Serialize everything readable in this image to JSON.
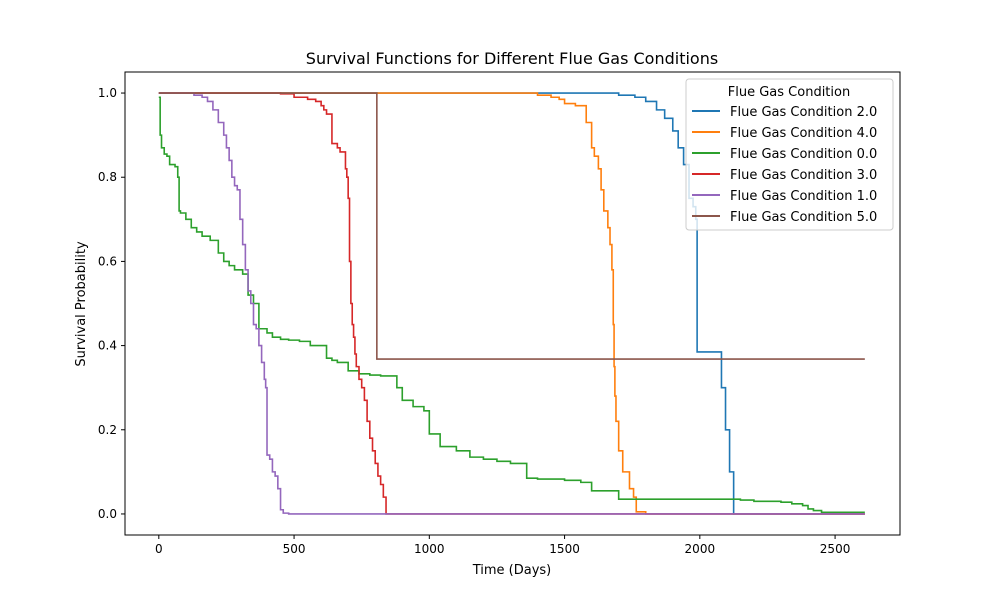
{
  "chart_data": {
    "type": "line",
    "title": "Survival Functions for Different Flue Gas Conditions",
    "xlabel": "Time (Days)",
    "ylabel": "Survival Probability",
    "xlim": [
      -125,
      2740
    ],
    "ylim": [
      -0.05,
      1.05
    ],
    "xticks": [
      0,
      500,
      1000,
      1500,
      2000,
      2500
    ],
    "yticks": [
      0.0,
      0.2,
      0.4,
      0.6,
      0.8,
      1.0
    ],
    "ytick_labels": [
      "0.0",
      "0.2",
      "0.4",
      "0.6",
      "0.8",
      "1.0"
    ],
    "grid": false,
    "legend": {
      "title": "Flue Gas Condition",
      "placement": "top-right"
    },
    "series": [
      {
        "name": "Flue Gas Condition 2.0",
        "color": "#1f77b4",
        "x": [
          0,
          1600,
          1700,
          1760,
          1800,
          1840,
          1870,
          1900,
          1920,
          1940,
          1960,
          1975,
          1985,
          1990,
          2070,
          2080,
          2095,
          2110,
          2125,
          2610
        ],
        "y": [
          1.0,
          1.0,
          0.995,
          0.99,
          0.98,
          0.96,
          0.94,
          0.91,
          0.87,
          0.83,
          0.75,
          0.73,
          0.7,
          0.385,
          0.385,
          0.3,
          0.2,
          0.1,
          0.0,
          0.0
        ]
      },
      {
        "name": "Flue Gas Condition 4.0",
        "color": "#ff7f0e",
        "x": [
          0,
          1300,
          1400,
          1450,
          1480,
          1500,
          1540,
          1580,
          1600,
          1610,
          1625,
          1635,
          1645,
          1660,
          1668,
          1675,
          1680,
          1683,
          1686,
          1690,
          1700,
          1715,
          1740,
          1755,
          1765,
          1800,
          2610
        ],
        "y": [
          1.0,
          1.0,
          0.995,
          0.99,
          0.985,
          0.975,
          0.97,
          0.93,
          0.87,
          0.85,
          0.82,
          0.77,
          0.72,
          0.68,
          0.64,
          0.58,
          0.45,
          0.35,
          0.28,
          0.22,
          0.15,
          0.1,
          0.06,
          0.04,
          0.005,
          0.0,
          0.0
        ]
      },
      {
        "name": "Flue Gas Condition 0.0",
        "color": "#2ca02c",
        "x": [
          0,
          5,
          10,
          20,
          30,
          40,
          60,
          70,
          75,
          80,
          100,
          120,
          140,
          160,
          190,
          220,
          240,
          260,
          280,
          310,
          330,
          350,
          370,
          400,
          420,
          450,
          480,
          520,
          560,
          620,
          640,
          660,
          700,
          740,
          780,
          820,
          880,
          900,
          940,
          980,
          1000,
          1040,
          1100,
          1150,
          1200,
          1250,
          1300,
          1360,
          1400,
          1500,
          1560,
          1600,
          1700,
          1800,
          1900,
          2000,
          2150,
          2200,
          2300,
          2340,
          2380,
          2400,
          2420,
          2450,
          2610
        ],
        "y": [
          0.99,
          0.9,
          0.87,
          0.855,
          0.85,
          0.83,
          0.825,
          0.8,
          0.72,
          0.715,
          0.7,
          0.68,
          0.67,
          0.66,
          0.65,
          0.62,
          0.6,
          0.59,
          0.58,
          0.57,
          0.52,
          0.5,
          0.44,
          0.43,
          0.42,
          0.415,
          0.413,
          0.41,
          0.4,
          0.37,
          0.365,
          0.36,
          0.34,
          0.333,
          0.33,
          0.328,
          0.3,
          0.27,
          0.255,
          0.245,
          0.19,
          0.16,
          0.15,
          0.135,
          0.13,
          0.125,
          0.12,
          0.085,
          0.083,
          0.08,
          0.075,
          0.055,
          0.035,
          0.035,
          0.035,
          0.035,
          0.033,
          0.03,
          0.028,
          0.024,
          0.02,
          0.012,
          0.008,
          0.004,
          0.004
        ]
      },
      {
        "name": "Flue Gas Condition 3.0",
        "color": "#d62728",
        "x": [
          0,
          400,
          450,
          500,
          550,
          580,
          600,
          610,
          620,
          640,
          660,
          670,
          690,
          695,
          700,
          705,
          710,
          715,
          720,
          725,
          730,
          740,
          750,
          760,
          770,
          780,
          790,
          800,
          810,
          820,
          830,
          840,
          2610
        ],
        "y": [
          1.0,
          1.0,
          0.998,
          0.99,
          0.985,
          0.98,
          0.97,
          0.96,
          0.95,
          0.88,
          0.87,
          0.86,
          0.82,
          0.8,
          0.75,
          0.6,
          0.5,
          0.45,
          0.42,
          0.38,
          0.35,
          0.32,
          0.3,
          0.27,
          0.22,
          0.18,
          0.15,
          0.12,
          0.09,
          0.07,
          0.04,
          0.0,
          0.0
        ]
      },
      {
        "name": "Flue Gas Condition 1.0",
        "color": "#9467bd",
        "x": [
          0,
          100,
          130,
          160,
          180,
          200,
          220,
          240,
          250,
          260,
          270,
          280,
          290,
          300,
          310,
          320,
          330,
          340,
          350,
          360,
          370,
          380,
          390,
          395,
          400,
          410,
          420,
          430,
          440,
          450,
          460,
          480,
          2610
        ],
        "y": [
          1.0,
          1.0,
          0.995,
          0.99,
          0.98,
          0.96,
          0.93,
          0.9,
          0.87,
          0.84,
          0.8,
          0.78,
          0.77,
          0.7,
          0.64,
          0.58,
          0.53,
          0.5,
          0.45,
          0.44,
          0.4,
          0.36,
          0.32,
          0.3,
          0.14,
          0.13,
          0.1,
          0.09,
          0.06,
          0.01,
          0.002,
          0.0,
          0.0
        ]
      },
      {
        "name": "Flue Gas Condition 5.0",
        "color": "#8c564b",
        "x": [
          0,
          805,
          806,
          2610
        ],
        "y": [
          1.0,
          1.0,
          0.368,
          0.368
        ]
      }
    ]
  }
}
